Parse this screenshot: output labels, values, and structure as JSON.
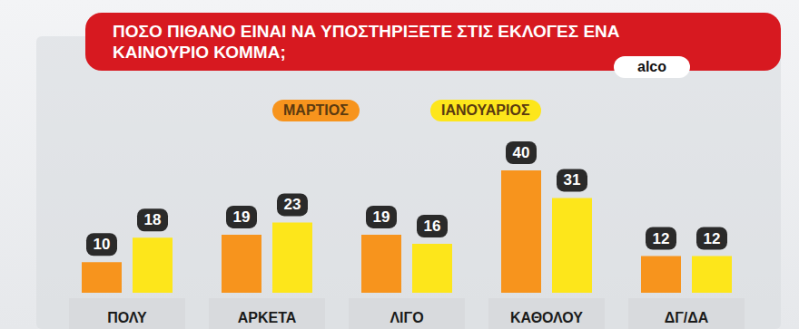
{
  "chart_data": {
    "type": "bar",
    "title": "ΠΟΣΟ ΠΙΘΑΝΟ ΕΙΝΑΙ ΝΑ ΥΠΟΣΤΗΡΙΞΕΤΕ ΣΤΙΣ ΕΚΛΟΓΕΣ ΕΝΑ ΚΑΙΝΟΥΡΙΟ ΚΟΜΜΑ;",
    "source": "alco",
    "categories": [
      "ΠΟΛΥ",
      "ΑΡΚΕΤΑ",
      "ΛΙΓΟ",
      "ΚΑΘΟΛΟΥ",
      "ΔΓ/ΔΑ"
    ],
    "series": [
      {
        "name": "ΜΑΡΤΙΟΣ",
        "color": "#f7941d",
        "values": [
          10,
          19,
          19,
          40,
          12
        ]
      },
      {
        "name": "ΙΑΝΟΥΑΡΙΟΣ",
        "color": "#fde61b",
        "values": [
          18,
          23,
          16,
          31,
          12
        ]
      }
    ],
    "ylim": [
      0,
      40
    ],
    "grid": false,
    "data_labels": true,
    "tick_labels": "x"
  }
}
